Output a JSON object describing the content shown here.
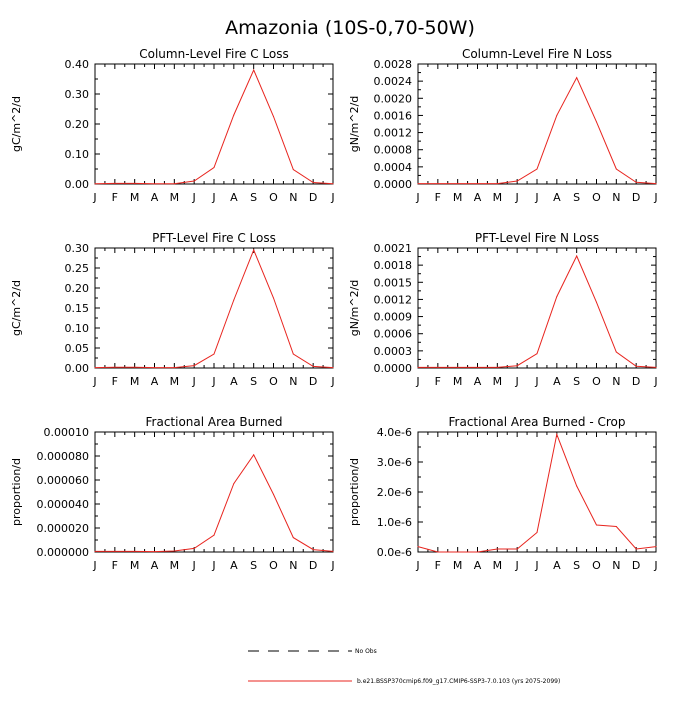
{
  "figure": {
    "title": "Amazonia (10S-0,70-50W)",
    "legend": [
      {
        "label": "No Obs",
        "color": "#000000",
        "dash": true
      },
      {
        "label": "b.e21.BSSP370cmip6.f09_g17.CMIP6-SSP3-7.0.103 (yrs 2075-2099)",
        "color": "#e8251f",
        "dash": false
      }
    ],
    "line_color": "#e8251f"
  },
  "chart_data": [
    {
      "type": "line",
      "title": "Column-Level Fire C Loss",
      "ylabel": "gC/m^2/d",
      "xlabel": "",
      "categories": [
        "J",
        "F",
        "M",
        "A",
        "M",
        "J",
        "J",
        "A",
        "S",
        "O",
        "N",
        "D",
        "J"
      ],
      "ylim": [
        0,
        0.4
      ],
      "yticks": [
        "0.00",
        "0.10",
        "0.20",
        "0.30",
        "0.40"
      ],
      "yticks_values": [
        0,
        0.1,
        0.2,
        0.3,
        0.4
      ],
      "series": [
        {
          "name": "b.e21.BSSP370cmip6.f09_g17.CMIP6-SSP3-7.0.103 (yrs 2075-2099)",
          "values": [
            0.001,
            0.002,
            0.002,
            0.001,
            0.001,
            0.01,
            0.055,
            0.23,
            0.38,
            0.225,
            0.048,
            0.005,
            0.001
          ]
        }
      ]
    },
    {
      "type": "line",
      "title": "Column-Level Fire N Loss",
      "ylabel": "gN/m^2/d",
      "xlabel": "",
      "categories": [
        "J",
        "F",
        "M",
        "A",
        "M",
        "J",
        "J",
        "A",
        "S",
        "O",
        "N",
        "D",
        "J"
      ],
      "ylim": [
        0,
        0.0028
      ],
      "yticks": [
        "0.0000",
        "0.0004",
        "0.0008",
        "0.0012",
        "0.0016",
        "0.0020",
        "0.0024",
        "0.0028"
      ],
      "yticks_values": [
        0,
        0.0004,
        0.0008,
        0.0012,
        0.0016,
        0.002,
        0.0024,
        0.0028
      ],
      "series": [
        {
          "name": "b.e21.BSSP370cmip6.f09_g17.CMIP6-SSP3-7.0.103 (yrs 2075-2099)",
          "values": [
            1e-05,
            1e-05,
            1e-05,
            1e-05,
            1e-05,
            7e-05,
            0.00035,
            0.0016,
            0.00248,
            0.00145,
            0.00035,
            4e-05,
            1e-05
          ]
        }
      ]
    },
    {
      "type": "line",
      "title": "PFT-Level Fire C Loss",
      "ylabel": "gC/m^2/d",
      "xlabel": "",
      "categories": [
        "J",
        "F",
        "M",
        "A",
        "M",
        "J",
        "J",
        "A",
        "S",
        "O",
        "N",
        "D",
        "J"
      ],
      "ylim": [
        0,
        0.3
      ],
      "yticks": [
        "0.00",
        "0.05",
        "0.10",
        "0.15",
        "0.20",
        "0.25",
        "0.30"
      ],
      "yticks_values": [
        0,
        0.05,
        0.1,
        0.15,
        0.2,
        0.25,
        0.3
      ],
      "series": [
        {
          "name": "b.e21.BSSP370cmip6.f09_g17.CMIP6-SSP3-7.0.103 (yrs 2075-2099)",
          "values": [
            0.001,
            0.002,
            0.002,
            0.001,
            0.001,
            0.006,
            0.035,
            0.17,
            0.295,
            0.175,
            0.035,
            0.004,
            0.001
          ]
        }
      ]
    },
    {
      "type": "line",
      "title": "PFT-Level Fire N Loss",
      "ylabel": "gN/m^2/d",
      "xlabel": "",
      "categories": [
        "J",
        "F",
        "M",
        "A",
        "M",
        "J",
        "J",
        "A",
        "S",
        "O",
        "N",
        "D",
        "J"
      ],
      "ylim": [
        0,
        0.0021
      ],
      "yticks": [
        "0.0000",
        "0.0003",
        "0.0006",
        "0.0009",
        "0.0012",
        "0.0015",
        "0.0018",
        "0.0021"
      ],
      "yticks_values": [
        0,
        0.0003,
        0.0006,
        0.0009,
        0.0012,
        0.0015,
        0.0018,
        0.0021
      ],
      "series": [
        {
          "name": "b.e21.BSSP370cmip6.f09_g17.CMIP6-SSP3-7.0.103 (yrs 2075-2099)",
          "values": [
            1e-05,
            1e-05,
            1e-05,
            1e-05,
            1e-05,
            4e-05,
            0.00025,
            0.00125,
            0.00196,
            0.00115,
            0.00028,
            3e-05,
            1e-05
          ]
        }
      ]
    },
    {
      "type": "line",
      "title": "Fractional Area Burned",
      "ylabel": "proportion/d",
      "xlabel": "",
      "categories": [
        "J",
        "F",
        "M",
        "A",
        "M",
        "J",
        "J",
        "A",
        "S",
        "O",
        "N",
        "D",
        "J"
      ],
      "ylim": [
        0,
        0.0001
      ],
      "yticks": [
        "0.000000",
        "0.000020",
        "0.000040",
        "0.000060",
        "0.000080",
        "0.00010"
      ],
      "yticks_values": [
        0,
        2e-05,
        4e-05,
        6e-05,
        8e-05,
        0.0001
      ],
      "series": [
        {
          "name": "b.e21.BSSP370cmip6.f09_g17.CMIP6-SSP3-7.0.103 (yrs 2075-2099)",
          "values": [
            5e-07,
            5e-07,
            5e-07,
            3e-07,
            8e-07,
            3e-06,
            1.4e-05,
            5.7e-05,
            8.1e-05,
            4.8e-05,
            1.2e-05,
            2e-06,
            5e-07
          ]
        }
      ]
    },
    {
      "type": "line",
      "title": "Fractional Area Burned - Crop",
      "ylabel": "proportion/d",
      "xlabel": "",
      "categories": [
        "J",
        "F",
        "M",
        "A",
        "M",
        "J",
        "J",
        "A",
        "S",
        "O",
        "N",
        "D",
        "J"
      ],
      "ylim": [
        0,
        4e-06
      ],
      "yticks": [
        "0.0e-6",
        "1.0e-6",
        "2.0e-6",
        "3.0e-6",
        "4.0e-6"
      ],
      "yticks_values": [
        0,
        1e-06,
        2e-06,
        3e-06,
        4e-06
      ],
      "series": [
        {
          "name": "b.e21.BSSP370cmip6.f09_g17.CMIP6-SSP3-7.0.103 (yrs 2075-2099)",
          "values": [
            1.8e-07,
            0.0,
            0.0,
            0.0,
            1e-07,
            1e-07,
            6.5e-07,
            3.92e-06,
            2.2e-06,
            9e-07,
            8.5e-07,
            1e-07,
            1.8e-07
          ]
        }
      ]
    }
  ]
}
